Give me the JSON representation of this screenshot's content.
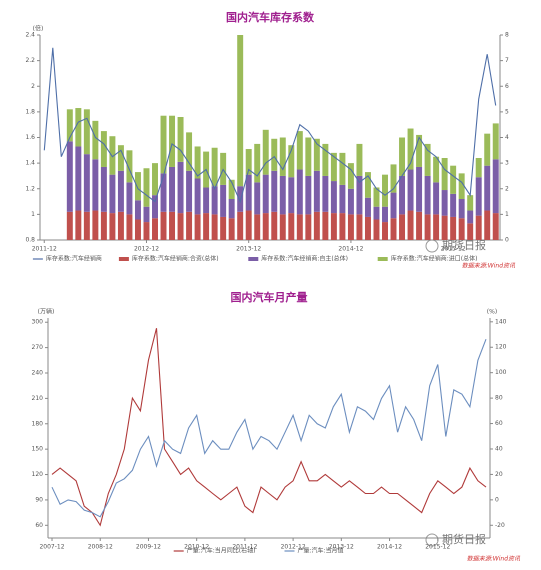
{
  "watermark": "期货日报",
  "chart_data": [
    {
      "type": "bar",
      "stacked": true,
      "title": "国内汽车库存系数",
      "ylabel": "(倍)",
      "source": "数据来源:Wind资讯",
      "categories": [
        "2011-12",
        null,
        null,
        null,
        null,
        null,
        null,
        null,
        null,
        null,
        null,
        null,
        "2012-12",
        null,
        null,
        null,
        null,
        null,
        null,
        null,
        null,
        null,
        null,
        null,
        "2013-12",
        null,
        null,
        null,
        null,
        null,
        null,
        null,
        null,
        null,
        null,
        null,
        "2014-12",
        null,
        null,
        null,
        null,
        null,
        null,
        null,
        null,
        null,
        null,
        null,
        "2015-12",
        null,
        null,
        null,
        null,
        null
      ],
      "ylim": [
        0.8,
        2.4
      ],
      "yticks": [
        0.8,
        1,
        1.2,
        1.4,
        1.6,
        1.8,
        2,
        2.2,
        2.4
      ],
      "y2lim": [
        0,
        8
      ],
      "y2ticks": [
        0,
        1,
        2,
        3,
        4,
        5,
        6,
        7,
        8
      ],
      "series": [
        {
          "name": "库存系数:汽车经销商",
          "type": "line",
          "color": "#4f6fa8",
          "values": [
            1.5,
            2.3,
            1.45,
            1.6,
            1.72,
            1.75,
            1.6,
            1.55,
            1.45,
            1.5,
            1.35,
            1.2,
            1.15,
            1.1,
            1.3,
            1.55,
            1.5,
            1.4,
            1.3,
            1.35,
            1.2,
            1.35,
            1.25,
            1.1,
            1.35,
            1.3,
            1.4,
            1.45,
            1.35,
            1.5,
            1.7,
            1.65,
            1.55,
            1.5,
            1.45,
            1.4,
            1.35,
            1.25,
            1.3,
            1.2,
            1.15,
            1.2,
            1.3,
            1.4,
            1.6,
            1.5,
            1.45,
            1.35,
            1.3,
            1.25,
            1.15,
            1.9,
            2.25,
            1.85
          ]
        },
        {
          "name": "库存系数:汽车经销商:合资(总体)",
          "type": "bar",
          "color": "#c0504d",
          "values": [
            null,
            null,
            null,
            1.02,
            1.03,
            1.02,
            1.03,
            1.02,
            1.01,
            1.02,
            1.0,
            0.96,
            0.94,
            0.97,
            1.02,
            1.02,
            1.01,
            1.02,
            1.0,
            1.01,
            1.0,
            0.98,
            0.97,
            1.02,
            1.03,
            1.0,
            1.01,
            1.02,
            1.0,
            1.01,
            1.0,
            1.0,
            1.02,
            1.02,
            1.01,
            1.01,
            1.0,
            1.0,
            0.98,
            0.96,
            0.94,
            0.97,
            1.0,
            1.03,
            1.02,
            1.0,
            1.0,
            0.99,
            0.98,
            0.97,
            0.93,
            0.99,
            1.03,
            1.01
          ]
        },
        {
          "name": "库存系数:汽车经销商:自主(总体)",
          "type": "bar",
          "color": "#7b5ea7",
          "values": [
            null,
            null,
            null,
            0.55,
            0.5,
            0.45,
            0.4,
            0.35,
            0.3,
            0.32,
            0.25,
            0.15,
            0.12,
            0.18,
            0.3,
            0.35,
            0.4,
            0.32,
            0.28,
            0.2,
            0.22,
            0.25,
            0.15,
            0.2,
            0.28,
            0.25,
            0.3,
            0.32,
            0.3,
            0.28,
            0.35,
            0.3,
            0.32,
            0.28,
            0.25,
            0.22,
            0.2,
            0.3,
            0.15,
            0.1,
            0.12,
            0.2,
            0.3,
            0.32,
            0.35,
            0.3,
            0.25,
            0.2,
            0.18,
            0.15,
            0.1,
            0.3,
            0.35,
            0.42
          ]
        },
        {
          "name": "库存系数:汽车经销商:进口(总体)",
          "type": "bar",
          "color": "#9bbb59",
          "values": [
            null,
            null,
            null,
            0.25,
            0.3,
            0.35,
            0.3,
            0.28,
            0.3,
            0.2,
            0.25,
            0.22,
            0.3,
            0.25,
            0.45,
            0.4,
            0.35,
            0.3,
            0.25,
            0.28,
            0.3,
            0.25,
            0.15,
            1.25,
            0.2,
            0.3,
            0.35,
            0.25,
            0.3,
            0.25,
            0.3,
            0.3,
            0.25,
            0.25,
            0.22,
            0.25,
            0.2,
            0.25,
            0.2,
            0.15,
            0.25,
            0.22,
            0.3,
            0.32,
            0.25,
            0.25,
            0.2,
            0.25,
            0.22,
            0.2,
            0.12,
            0.15,
            0.25,
            0.28
          ]
        }
      ]
    },
    {
      "type": "line",
      "title": "国内汽车月产量",
      "ylabel": "(万辆)",
      "y2label": "(%)",
      "source": "数据来源:Wind资讯",
      "categories": [
        "2007-12",
        null,
        null,
        null,
        null,
        null,
        "2008-12",
        null,
        null,
        null,
        null,
        null,
        "2009-12",
        null,
        null,
        null,
        null,
        null,
        "2010-12",
        null,
        null,
        null,
        null,
        null,
        "2011-12",
        null,
        null,
        null,
        null,
        null,
        "2012-12",
        null,
        null,
        null,
        null,
        null,
        "2013-12",
        null,
        null,
        null,
        null,
        null,
        "2014-12",
        null,
        null,
        null,
        null,
        null,
        "2015-12",
        null,
        null,
        null,
        null,
        null,
        null
      ],
      "ylim": [
        45,
        305
      ],
      "yticks": [
        60,
        90,
        120,
        150,
        180,
        210,
        240,
        270,
        300
      ],
      "y2lim": [
        -30,
        143
      ],
      "y2ticks": [
        -20,
        0,
        20,
        40,
        60,
        80,
        100,
        120,
        140
      ],
      "series": [
        {
          "name": "产量:汽车:当月同比(右轴)",
          "axis": "y2",
          "color": "#b03a3a",
          "values": [
            20,
            25,
            20,
            15,
            -5,
            -10,
            -20,
            5,
            20,
            40,
            80,
            70,
            110,
            135,
            40,
            30,
            20,
            25,
            15,
            10,
            5,
            0,
            5,
            10,
            -5,
            -10,
            10,
            5,
            0,
            10,
            15,
            30,
            15,
            15,
            20,
            15,
            10,
            15,
            10,
            5,
            5,
            10,
            5,
            5,
            0,
            -5,
            -10,
            5,
            15,
            10,
            5,
            10,
            25,
            15,
            10
          ]
        },
        {
          "name": "产量:汽车:当月值",
          "color": "#6c8ebf",
          "values": [
            105,
            85,
            90,
            88,
            78,
            75,
            70,
            88,
            110,
            115,
            125,
            150,
            165,
            130,
            160,
            150,
            145,
            175,
            190,
            145,
            160,
            150,
            150,
            170,
            185,
            150,
            165,
            160,
            150,
            170,
            190,
            160,
            190,
            180,
            175,
            200,
            215,
            170,
            200,
            195,
            185,
            210,
            225,
            170,
            200,
            185,
            160,
            225,
            250,
            165,
            220,
            215,
            200,
            255,
            280
          ]
        }
      ]
    }
  ]
}
